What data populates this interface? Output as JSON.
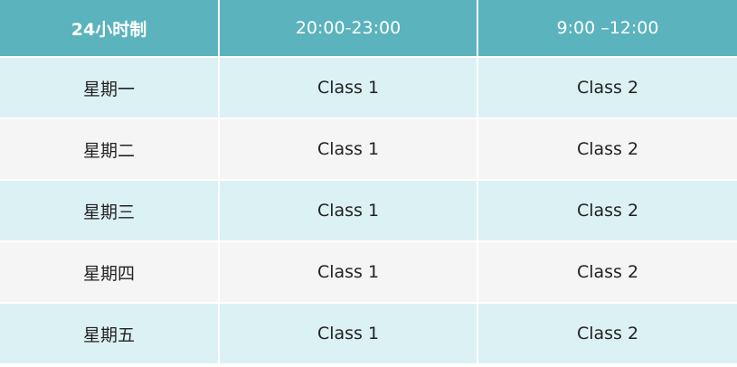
{
  "header": [
    "24小时制",
    "20:00-23:00",
    "9:00 –12:00"
  ],
  "rows": [
    [
      "星期一",
      "Class 1",
      "Class 2"
    ],
    [
      "星期二",
      "Class 1",
      "Class 2"
    ],
    [
      "星期三",
      "Class 1",
      "Class 2"
    ],
    [
      "星期四",
      "Class 1",
      "Class 2"
    ],
    [
      "星期五",
      "Class 1",
      "Class 2"
    ]
  ],
  "colors": {
    "header_bg": "#5ab3bd",
    "row_odd": "#dcf1f4",
    "row_even": "#f5f5f5"
  }
}
